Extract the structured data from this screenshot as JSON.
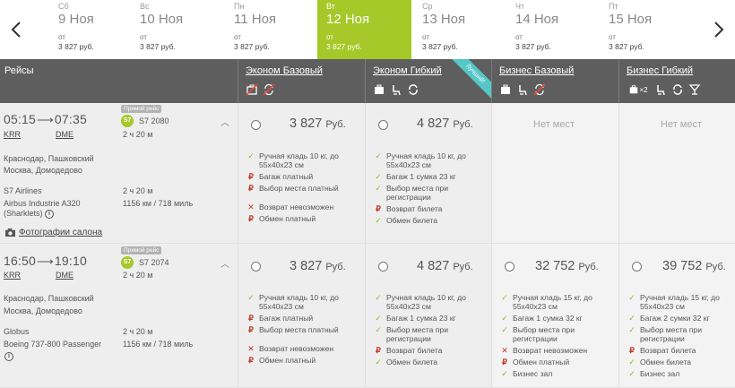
{
  "dates": [
    {
      "dow": "Сб",
      "date": "9 Ноя",
      "from": "от",
      "price": "3 827 руб.",
      "active": false
    },
    {
      "dow": "Вс",
      "date": "10 Ноя",
      "from": "от",
      "price": "3 827 руб.",
      "active": false
    },
    {
      "dow": "Пн",
      "date": "11 Ноя",
      "from": "от",
      "price": "3 827 руб.",
      "active": false
    },
    {
      "dow": "Вт",
      "date": "12 Ноя",
      "from": "от",
      "price": "3 827 руб.",
      "active": true
    },
    {
      "dow": "Ср",
      "date": "13 Ноя",
      "from": "от",
      "price": "3 827 руб.",
      "active": false
    },
    {
      "dow": "Чт",
      "date": "14 Ноя",
      "from": "от",
      "price": "3 827 руб.",
      "active": false
    },
    {
      "dow": "Пт",
      "date": "15 Ноя",
      "from": "от",
      "price": "3 827 руб.",
      "active": false
    }
  ],
  "header": {
    "flights": "Рейсы",
    "fares": [
      {
        "label": "Эконом Базовый",
        "icons": [
          "no-baggage-icon",
          "no-refund-icon"
        ]
      },
      {
        "label": "Эконом Гибкий",
        "icons": [
          "baggage-icon",
          "seat-icon",
          "exchange-icon"
        ],
        "ribbon": "Лучший!"
      },
      {
        "label": "Бизнес Базовый",
        "icons": [
          "baggage-icon",
          "seat-icon",
          "no-refund-icon"
        ]
      },
      {
        "label": "Бизнес Гибкий",
        "icons": [
          "baggage-x2-icon",
          "seat-icon",
          "exchange-icon",
          "lounge-icon"
        ],
        "baggage_count": "×2"
      }
    ]
  },
  "colors": {
    "accent": "#a5c928",
    "header_bg": "#5e5e5e",
    "ribbon": "#55c7c9",
    "check": "#8cbf26",
    "paid": "#c0392b"
  },
  "flights": [
    {
      "dep_time": "05:15",
      "arr_time": "07:35",
      "dep_code": "KRR",
      "arr_code": "DME",
      "direct": "Прямой рейс",
      "flight_no": "S7 2080",
      "airline_logo": "S7",
      "duration": "2 ч 20 м",
      "dep_airport": "Краснодар, Пашковский",
      "arr_airport": "Москва, Домодедово",
      "airline": "S7 Airlines",
      "aircraft": "Airbus Industrie A320 (Sharklets)",
      "duration2": "2 ч 20 м",
      "distance": "1156 км / 718 миль",
      "photos": "Фотографии салона",
      "fares": [
        {
          "price": "3 827",
          "currency": "Руб.",
          "features": [
            {
              "mark": "ok",
              "text": "Ручная кладь 10 кг, до 55x40x23 см"
            },
            {
              "mark": "paid",
              "text": "Багаж платный"
            },
            {
              "mark": "paid",
              "text": "Выбор места платный"
            },
            {
              "mark": "no",
              "text": "Возврат невозможен",
              "gap": true
            },
            {
              "mark": "paid",
              "text": "Обмен платный"
            }
          ]
        },
        {
          "price": "4 827",
          "currency": "Руб.",
          "features": [
            {
              "mark": "ok",
              "text": "Ручная кладь 10 кг, до 55x40x23 см"
            },
            {
              "mark": "ok",
              "text": "Багаж 1 сумка 23 кг"
            },
            {
              "mark": "ok",
              "text": "Выбор места при регистрации"
            },
            {
              "mark": "paid",
              "text": "Возврат билета"
            },
            {
              "mark": "ok",
              "text": "Обмен билета"
            }
          ]
        },
        {
          "none": "Нет мест"
        },
        {
          "none": "Нет мест"
        }
      ]
    },
    {
      "dep_time": "16:50",
      "arr_time": "19:10",
      "dep_code": "KRR",
      "arr_code": "DME",
      "direct": "Прямой рейс",
      "flight_no": "S7 2074",
      "airline_logo": "S7",
      "duration": "2 ч 20 м",
      "dep_airport": "Краснодар, Пашковский",
      "arr_airport": "Москва, Домодедово",
      "airline": "Globus",
      "aircraft": "Boeing 737-800 Passenger",
      "duration2": "2 ч 20 м",
      "distance": "1156 км / 718 миль",
      "fares": [
        {
          "price": "3 827",
          "currency": "Руб.",
          "features": [
            {
              "mark": "ok",
              "text": "Ручная кладь 10 кг, до 55x40x23 см"
            },
            {
              "mark": "paid",
              "text": "Багаж платный"
            },
            {
              "mark": "paid",
              "text": "Выбор места платный"
            },
            {
              "mark": "no",
              "text": "Возврат невозможен",
              "gap": true
            },
            {
              "mark": "paid",
              "text": "Обмен платный"
            }
          ]
        },
        {
          "price": "4 827",
          "currency": "Руб.",
          "features": [
            {
              "mark": "ok",
              "text": "Ручная кладь 10 кг, до 55x40x23 см"
            },
            {
              "mark": "ok",
              "text": "Багаж 1 сумка 23 кг"
            },
            {
              "mark": "ok",
              "text": "Выбор места при регистрации"
            },
            {
              "mark": "paid",
              "text": "Возврат билета"
            },
            {
              "mark": "ok",
              "text": "Обмен билета"
            }
          ]
        },
        {
          "price": "32 752",
          "currency": "Руб.",
          "features": [
            {
              "mark": "ok",
              "text": "Ручная кладь 15 кг, до 55x40x23 см"
            },
            {
              "mark": "ok",
              "text": "Багаж 1 сумка 32 кг"
            },
            {
              "mark": "ok",
              "text": "Выбор места при регистрации"
            },
            {
              "mark": "no",
              "text": "Возврат невозможен"
            },
            {
              "mark": "paid",
              "text": "Обмен платный"
            },
            {
              "mark": "ok",
              "text": "Бизнес зал"
            }
          ]
        },
        {
          "price": "39 752",
          "currency": "Руб.",
          "features": [
            {
              "mark": "ok",
              "text": "Ручная кладь 15 кг, до 55x40x23 см"
            },
            {
              "mark": "ok",
              "text": "Багаж 2 сумки 32 кг"
            },
            {
              "mark": "ok",
              "text": "Выбор места при регистрации"
            },
            {
              "mark": "paid",
              "text": "Возврат билета"
            },
            {
              "mark": "ok",
              "text": "Обмен билета"
            },
            {
              "mark": "ok",
              "text": "Бизнес зал"
            }
          ]
        }
      ]
    }
  ]
}
